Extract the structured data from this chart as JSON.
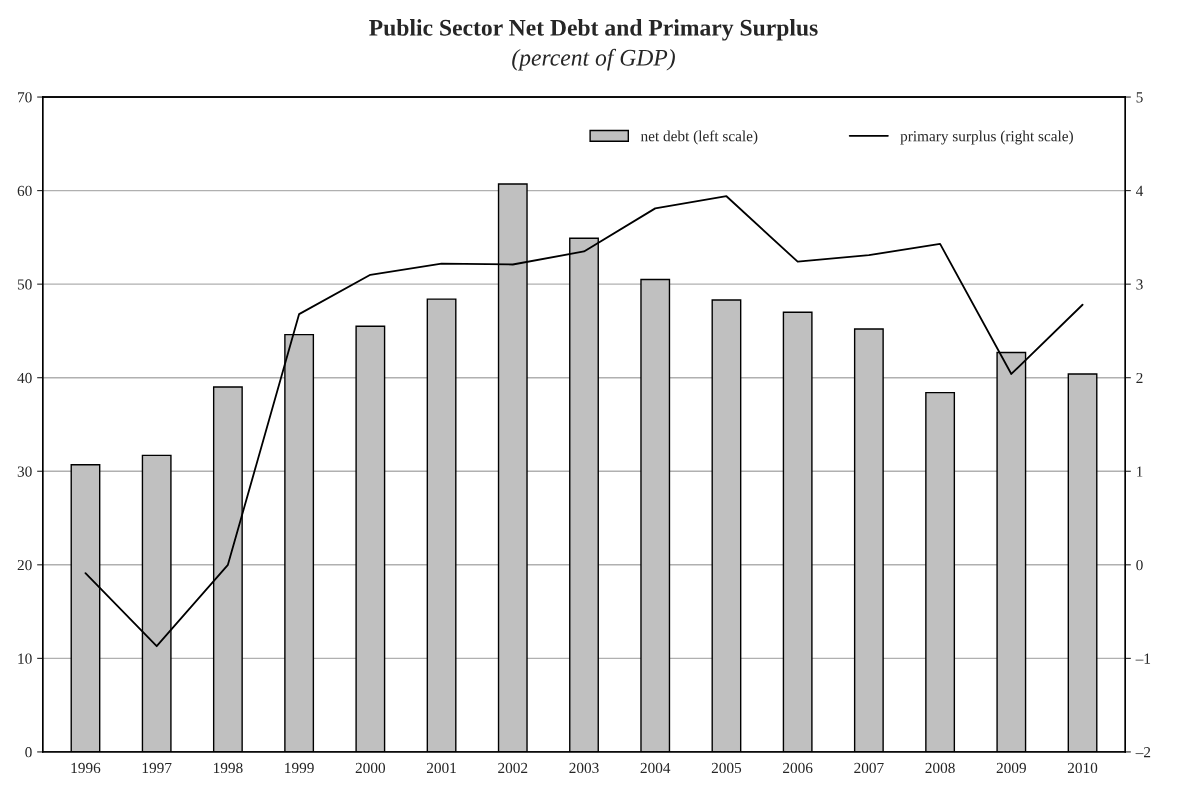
{
  "chart_data": {
    "type": "bar",
    "title": "Public Sector Net Debt and Primary Surplus",
    "subtitle": "(percent of GDP)",
    "categories": [
      "1996",
      "1997",
      "1998",
      "1999",
      "2000",
      "2001",
      "2002",
      "2003",
      "2004",
      "2005",
      "2006",
      "2007",
      "2008",
      "2009",
      "2010"
    ],
    "series": [
      {
        "name": "net debt (left scale)",
        "color": "#c0c0c0",
        "values": [
          30.7,
          31.7,
          39.0,
          44.6,
          45.5,
          48.4,
          60.7,
          54.9,
          50.5,
          48.3,
          47.0,
          45.2,
          38.4,
          42.7,
          40.4
        ]
      },
      {
        "name": "primary surplus (right scale)",
        "type": "line",
        "axis": "y2",
        "color": "#000000",
        "values": [
          -0.09,
          -0.87,
          0.0,
          2.68,
          3.1,
          3.22,
          3.21,
          3.35,
          3.81,
          3.94,
          3.24,
          3.31,
          3.43,
          2.04,
          2.78
        ]
      }
    ],
    "ylim": [
      0,
      70
    ],
    "yticks": [
      0,
      10,
      20,
      30,
      40,
      50,
      60,
      70
    ],
    "y2lim": [
      -2,
      5
    ],
    "y2ticks": [
      {
        "value": -2,
        "label": "–2"
      },
      {
        "value": -1,
        "label": "–1"
      },
      0,
      1,
      2,
      3,
      4,
      5
    ],
    "grid": "y",
    "legend": "top right"
  }
}
